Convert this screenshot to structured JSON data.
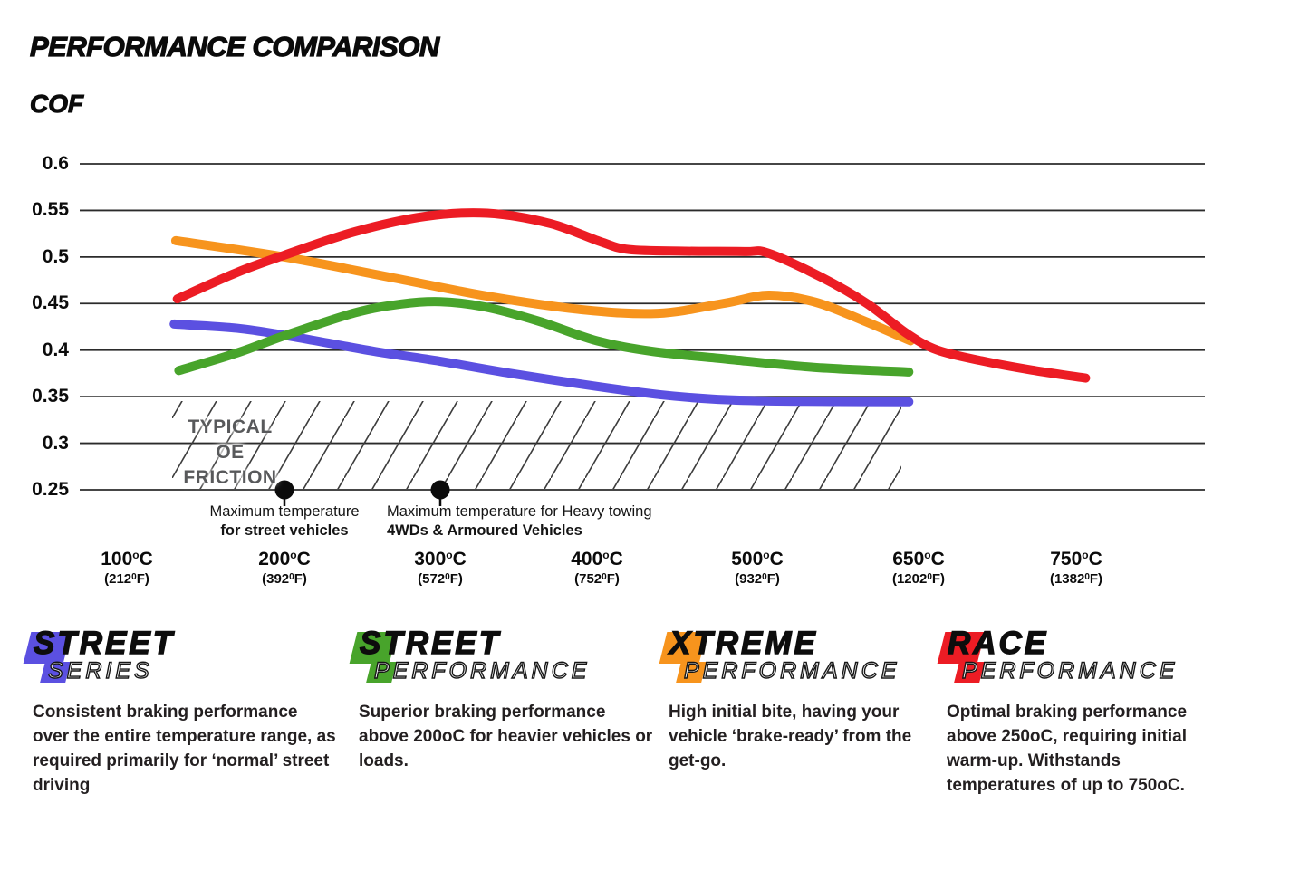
{
  "chart_data": {
    "type": "line",
    "title": "PERFORMANCE COMPARISON",
    "ylabel": "COF",
    "grid": true,
    "ylim": [
      0.25,
      0.6
    ],
    "y_ticks": [
      "0.6",
      "0.55",
      "0.5",
      "0.45",
      "0.4",
      "0.35",
      "0.3",
      "0.25"
    ],
    "x_ticks": [
      {
        "c": "100",
        "f": "212"
      },
      {
        "c": "200",
        "f": "392"
      },
      {
        "c": "300",
        "f": "572"
      },
      {
        "c": "400",
        "f": "752"
      },
      {
        "c": "500",
        "f": "932"
      },
      {
        "c": "650",
        "f": "1202"
      },
      {
        "c": "750",
        "f": "1382"
      }
    ],
    "temps_c": [
      100,
      200,
      300,
      400,
      500,
      650,
      750
    ],
    "series": [
      {
        "id": "street-series",
        "name": "Street Series",
        "color": "#5b50e1",
        "values_at_ticks": [
          0.43,
          0.416,
          0.388,
          0.361,
          0.345,
          0.344,
          null
        ],
        "points": [
          [
            0.3,
            0.428
          ],
          [
            0.7,
            0.4235
          ],
          [
            1.0,
            0.416
          ],
          [
            1.3,
            0.407
          ],
          [
            1.6,
            0.398
          ],
          [
            2.0,
            0.388
          ],
          [
            2.45,
            0.375
          ],
          [
            3.0,
            0.361
          ],
          [
            3.4,
            0.352
          ],
          [
            3.72,
            0.3475
          ],
          [
            4.05,
            0.3455
          ],
          [
            4.5,
            0.3448
          ],
          [
            4.94,
            0.3445
          ]
        ]
      },
      {
        "id": "xtreme-performance",
        "name": "Xtreme Performance",
        "color": "#f7941d",
        "values_at_ticks": [
          0.52,
          0.5,
          0.467,
          0.441,
          0.458,
          0.41,
          null
        ],
        "points": [
          [
            0.31,
            0.5175
          ],
          [
            1.0,
            0.5
          ],
          [
            1.7,
            0.4775
          ],
          [
            2.3,
            0.458
          ],
          [
            2.9,
            0.4435
          ],
          [
            3.38,
            0.4395
          ],
          [
            3.8,
            0.4505
          ],
          [
            4.07,
            0.459
          ],
          [
            4.36,
            0.4515
          ],
          [
            4.66,
            0.4315
          ],
          [
            4.95,
            0.41
          ]
        ]
      },
      {
        "id": "street-performance",
        "name": "Street Performance",
        "color": "#48a42b",
        "values_at_ticks": [
          0.378,
          0.416,
          0.452,
          0.41,
          0.383,
          0.376,
          null
        ],
        "points": [
          [
            0.33,
            0.378
          ],
          [
            0.7,
            0.397
          ],
          [
            1.0,
            0.4155
          ],
          [
            1.45,
            0.44
          ],
          [
            1.75,
            0.4495
          ],
          [
            2.0,
            0.452
          ],
          [
            2.28,
            0.4465
          ],
          [
            2.62,
            0.4315
          ],
          [
            3.0,
            0.41
          ],
          [
            3.35,
            0.3985
          ],
          [
            3.8,
            0.3905
          ],
          [
            4.35,
            0.3815
          ],
          [
            4.94,
            0.3765
          ]
        ]
      },
      {
        "id": "race-performance",
        "name": "Race Performance",
        "color": "#ec1c24",
        "values_at_ticks": [
          0.455,
          0.502,
          0.545,
          0.515,
          0.505,
          0.405,
          0.37
        ],
        "points": [
          [
            0.32,
            0.455
          ],
          [
            0.7,
            0.4835
          ],
          [
            1.0,
            0.502
          ],
          [
            1.45,
            0.527
          ],
          [
            1.9,
            0.5435
          ],
          [
            2.3,
            0.547
          ],
          [
            2.7,
            0.536
          ],
          [
            3.02,
            0.5165
          ],
          [
            3.2,
            0.508
          ],
          [
            3.55,
            0.5062
          ],
          [
            3.92,
            0.5058
          ],
          [
            4.07,
            0.504
          ],
          [
            4.4,
            0.478
          ],
          [
            4.68,
            0.45
          ],
          [
            4.93,
            0.4175
          ],
          [
            5.12,
            0.4
          ],
          [
            5.4,
            0.3885
          ],
          [
            5.72,
            0.3785
          ],
          [
            6.06,
            0.37
          ]
        ]
      }
    ],
    "oe_band": {
      "label_line1": "TYPICAL OE",
      "label_line2": "FRICTION",
      "cof_range": [
        0.25,
        0.345
      ],
      "temp_range_c": [
        130,
        640
      ]
    },
    "annotations": [
      {
        "at_temp_c": 200,
        "line1": "Maximum temperature",
        "line2": "for street vehicles"
      },
      {
        "at_temp_c": 300,
        "line1": "Maximum temperature for Heavy towing",
        "line2": "4WDs & Armoured Vehicles"
      }
    ]
  },
  "legend": [
    {
      "word": "STREET",
      "sub": "SERIES",
      "color": "#5b50e1",
      "description": "Consistent braking performance over the entire temperature range, as required primarily for ‘normal’ street driving"
    },
    {
      "word": "STREET",
      "sub": "PERFORMANCE",
      "color": "#48a42b",
      "description": "Superior braking performance above 200oC for heavier vehicles or loads."
    },
    {
      "word": "XTREME",
      "sub": "PERFORMANCE",
      "color": "#f7941d",
      "description": "High initial bite, having your vehicle ‘brake-ready’ from the get-go."
    },
    {
      "word": "RACE",
      "sub": "PERFORMANCE",
      "color": "#ec1c24",
      "description": "Optimal braking performance above 250oC, requiring initial warm-up. Withstands temperatures of up to 750oC."
    }
  ]
}
